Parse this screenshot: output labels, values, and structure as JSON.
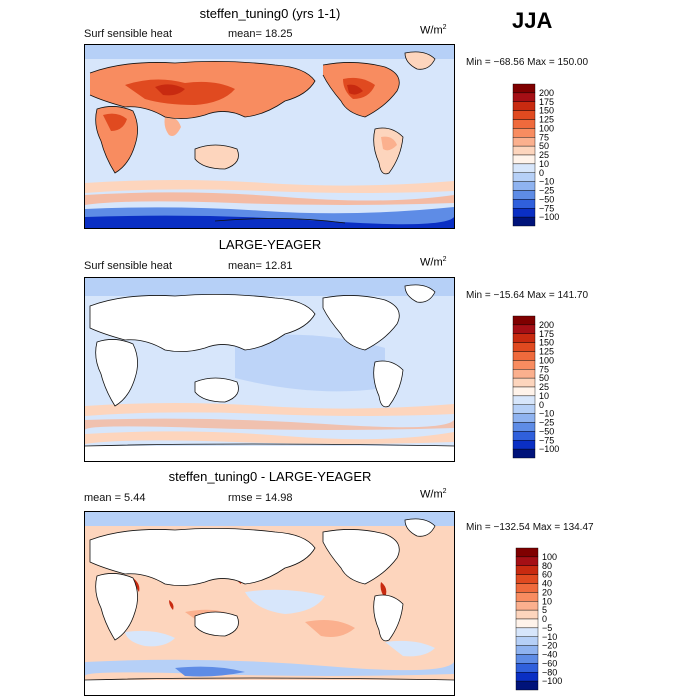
{
  "season": "JJA",
  "units_base": "W/m",
  "units_exp": "2",
  "panels": [
    {
      "title": "steffen_tuning0 (yrs 1-1)",
      "variable": "Surf sensible heat",
      "stat1": "mean=   18.25",
      "stat2": "",
      "minmax": "Min = −68.56  Max = 150.00",
      "levels": [
        "200",
        "175",
        "150",
        "125",
        "100",
        "75",
        "50",
        "25",
        "10",
        "0",
        "−10",
        "−25",
        "−50",
        "−75",
        "−100"
      ],
      "colors": [
        "#7f0000",
        "#a50f15",
        "#c82a10",
        "#e04a20",
        "#ef6a3c",
        "#f88c60",
        "#fbb08e",
        "#fdd5bd",
        "#fff3ea",
        "#d7e6fb",
        "#b6d0f7",
        "#8fb3f0",
        "#5e8ce6",
        "#3060dc",
        "#0a2fc4",
        "#00137a"
      ],
      "chart_data": {
        "type": "heatmap",
        "title": "steffen_tuning0 (yrs 1-1)",
        "variable": "Surf sensible heat",
        "units": "W/m2",
        "mean": 18.25,
        "min": -68.56,
        "max": 150.0,
        "contour_levels": [
          200,
          175,
          150,
          125,
          100,
          75,
          50,
          25,
          10,
          0,
          -10,
          -25,
          -50,
          -75,
          -100
        ]
      }
    },
    {
      "title": "LARGE-YEAGER",
      "variable": "Surf sensible heat",
      "stat1": "mean=   12.81",
      "stat2": "",
      "minmax": "Min = −15.64  Max = 141.70",
      "levels": [
        "200",
        "175",
        "150",
        "125",
        "100",
        "75",
        "50",
        "25",
        "10",
        "0",
        "−10",
        "−25",
        "−50",
        "−75",
        "−100"
      ],
      "colors": [
        "#7f0000",
        "#a50f15",
        "#c82a10",
        "#e04a20",
        "#ef6a3c",
        "#f88c60",
        "#fbb08e",
        "#fdd5bd",
        "#fff3ea",
        "#d7e6fb",
        "#b6d0f7",
        "#8fb3f0",
        "#5e8ce6",
        "#3060dc",
        "#0a2fc4",
        "#00137a"
      ],
      "chart_data": {
        "type": "heatmap",
        "title": "LARGE-YEAGER",
        "variable": "Surf sensible heat",
        "units": "W/m2",
        "mean": 12.81,
        "min": -15.64,
        "max": 141.7,
        "contour_levels": [
          200,
          175,
          150,
          125,
          100,
          75,
          50,
          25,
          10,
          0,
          -10,
          -25,
          -50,
          -75,
          -100
        ]
      }
    },
    {
      "title": "steffen_tuning0 - LARGE-YEAGER",
      "variable": "",
      "stat1": "mean =    5.44",
      "stat2": "rmse =   14.98",
      "minmax": "Min = −132.54  Max = 134.47",
      "levels": [
        "100",
        "80",
        "60",
        "40",
        "20",
        "10",
        "5",
        "0",
        "−5",
        "−10",
        "−20",
        "−40",
        "−60",
        "−80",
        "−100"
      ],
      "colors": [
        "#7f0000",
        "#a50f15",
        "#c82a10",
        "#e04a20",
        "#ef6a3c",
        "#f88c60",
        "#fbb08e",
        "#fdd5bd",
        "#fff3ea",
        "#d7e6fb",
        "#b6d0f7",
        "#8fb3f0",
        "#5e8ce6",
        "#3060dc",
        "#0a2fc4",
        "#00137a"
      ],
      "chart_data": {
        "type": "heatmap",
        "title": "steffen_tuning0 - LARGE-YEAGER",
        "units": "W/m2",
        "mean": 5.44,
        "rmse": 14.98,
        "min": -132.54,
        "max": 134.47,
        "contour_levels": [
          100,
          80,
          60,
          40,
          20,
          10,
          5,
          0,
          -5,
          -10,
          -20,
          -40,
          -60,
          -80,
          -100
        ]
      }
    }
  ]
}
